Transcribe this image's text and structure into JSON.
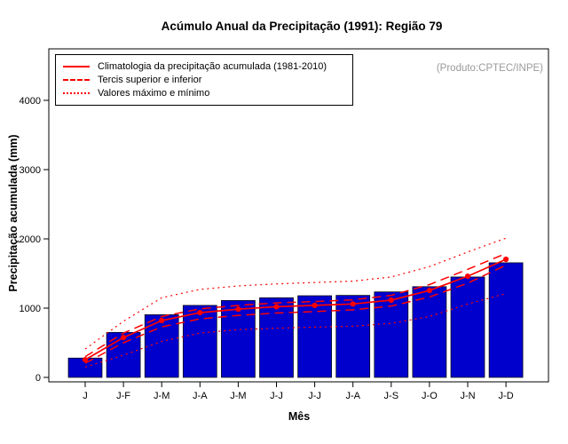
{
  "title": "Acúmulo Anual da Precipitação (1991): Região 79",
  "product_label": "(Produto:CPTEC/INPE)",
  "legend": {
    "items": [
      {
        "label": "Climatologia da precipitação acumulada (1981-2010)",
        "style": "solid"
      },
      {
        "label": "Tercis superior e inferior",
        "style": "dashed"
      },
      {
        "label": "Valores máximo e mínimo",
        "style": "dotted"
      }
    ]
  },
  "chart_data": {
    "type": "bar",
    "title": "Acúmulo Anual da Precipitação (1991): Região 79",
    "xlabel": "Mês",
    "ylabel": "Precipitação acumulada (mm)",
    "ylim": [
      0,
      4400
    ],
    "yticks": [
      0,
      1000,
      2000,
      3000,
      4000
    ],
    "grid": false,
    "legend_position": "top-left",
    "categories": [
      "J",
      "J-F",
      "J-M",
      "J-A",
      "J-M",
      "J-J",
      "J-J",
      "J-A",
      "J-S",
      "J-O",
      "J-N",
      "J-D"
    ],
    "bars": {
      "name": "Precipitação acumulada 1991 (mm)",
      "color": "#0000cd",
      "values": [
        280,
        650,
        905,
        1040,
        1110,
        1150,
        1180,
        1185,
        1235,
        1310,
        1450,
        1655
      ]
    },
    "series": [
      {
        "id": "climatology",
        "name": "Climatologia da precipitação acumulada (1981-2010)",
        "style": "solid",
        "marker": true,
        "values": [
          255,
          575,
          820,
          935,
          985,
          1020,
          1040,
          1060,
          1115,
          1255,
          1460,
          1705
        ]
      },
      {
        "id": "tercile-upper",
        "name": "Tercil superior",
        "style": "dashed",
        "marker": false,
        "values": [
          300,
          640,
          880,
          990,
          1040,
          1075,
          1095,
          1120,
          1185,
          1340,
          1560,
          1790
        ]
      },
      {
        "id": "tercile-lower",
        "name": "Tercil inferior",
        "style": "dashed",
        "marker": false,
        "values": [
          205,
          500,
          730,
          845,
          895,
          930,
          950,
          975,
          1030,
          1160,
          1360,
          1620
        ]
      },
      {
        "id": "max",
        "name": "Valor máximo",
        "style": "dotted",
        "marker": false,
        "values": [
          410,
          810,
          1150,
          1270,
          1320,
          1350,
          1370,
          1390,
          1450,
          1600,
          1810,
          2010
        ]
      },
      {
        "id": "min",
        "name": "Valor mínimo",
        "style": "dotted",
        "marker": false,
        "values": [
          150,
          320,
          520,
          640,
          690,
          710,
          725,
          740,
          780,
          880,
          1060,
          1210
        ]
      }
    ],
    "colors": {
      "bar": "#0000cd",
      "line": "#ff0000"
    }
  }
}
